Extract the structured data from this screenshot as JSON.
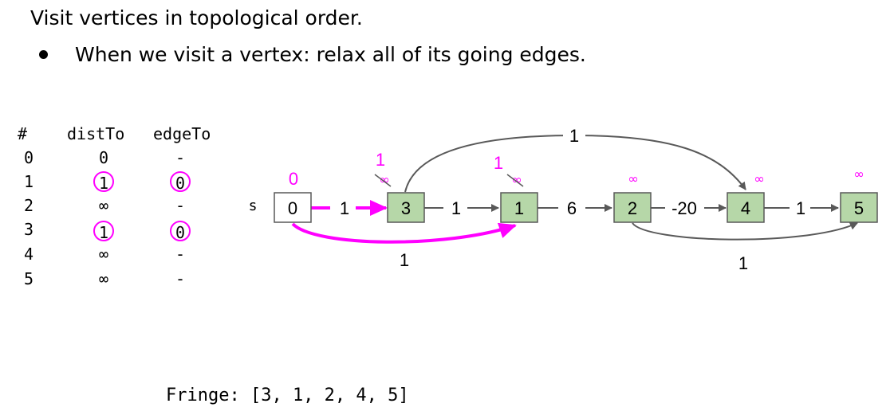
{
  "header": {
    "title": "Visit vertices in topological order.",
    "bullet": "When we visit a vertex: relax all of its going edges."
  },
  "table": {
    "headers": {
      "index": "#",
      "distTo": "distTo",
      "edgeTo": "edgeTo"
    },
    "rows": [
      {
        "index": "0",
        "distTo": "0",
        "edgeTo": "-"
      },
      {
        "index": "1",
        "distTo": "1",
        "edgeTo": "0"
      },
      {
        "index": "2",
        "distTo": "∞",
        "edgeTo": "-"
      },
      {
        "index": "3",
        "distTo": "1",
        "edgeTo": "0"
      },
      {
        "index": "4",
        "distTo": "∞",
        "edgeTo": "-"
      },
      {
        "index": "5",
        "distTo": "∞",
        "edgeTo": "-"
      }
    ]
  },
  "graph": {
    "source_label": "s",
    "nodes": [
      {
        "id": "0",
        "dist": "0",
        "old_dist": ""
      },
      {
        "id": "3",
        "dist": "1",
        "old_dist": "∞"
      },
      {
        "id": "1",
        "dist": "1",
        "old_dist": "∞"
      },
      {
        "id": "2",
        "dist": "∞",
        "old_dist": ""
      },
      {
        "id": "4",
        "dist": "∞",
        "old_dist": ""
      },
      {
        "id": "5",
        "dist": "∞",
        "old_dist": ""
      }
    ],
    "edges": [
      {
        "from": "0",
        "to": "3",
        "weight": "1"
      },
      {
        "from": "3",
        "to": "1",
        "weight": "1"
      },
      {
        "from": "1",
        "to": "2",
        "weight": "6"
      },
      {
        "from": "2",
        "to": "4",
        "weight": "-20"
      },
      {
        "from": "4",
        "to": "5",
        "weight": "1"
      },
      {
        "from": "3",
        "to": "4",
        "weight": "1"
      },
      {
        "from": "0",
        "to": "1",
        "weight": "1"
      },
      {
        "from": "2",
        "to": "5",
        "weight": "1"
      }
    ]
  },
  "fringe": "Fringe: [3, 1, 2, 4, 5]",
  "colors": {
    "highlight": "#ff00ff",
    "node_fill": "#b6d7a8",
    "edge": "#595959"
  }
}
